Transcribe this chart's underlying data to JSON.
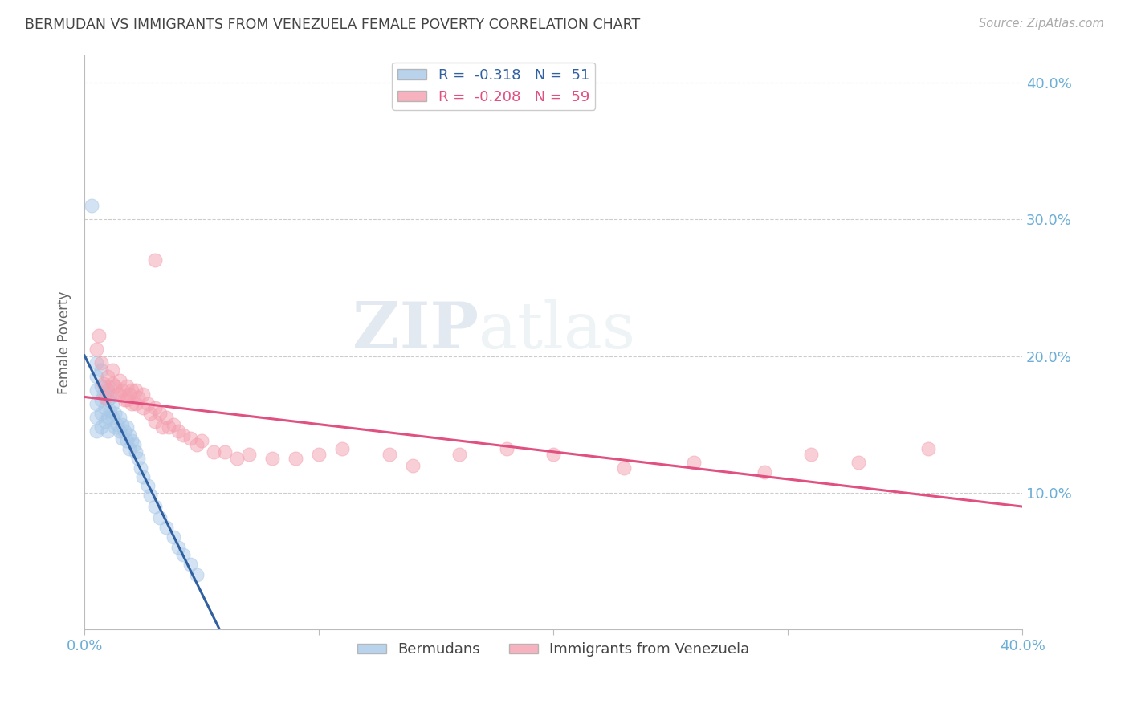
{
  "title": "BERMUDAN VS IMMIGRANTS FROM VENEZUELA FEMALE POVERTY CORRELATION CHART",
  "source": "Source: ZipAtlas.com",
  "ylabel": "Female Poverty",
  "watermark_zip": "ZIP",
  "watermark_atlas": "atlas",
  "bermuda_color": "#a8c8e8",
  "venezuela_color": "#f4a0b0",
  "bermuda_line_color": "#3060a0",
  "venezuela_line_color": "#e05080",
  "background_color": "#ffffff",
  "grid_color": "#cccccc",
  "axis_label_color": "#6baed6",
  "title_color": "#444444",
  "xlim": [
    0.0,
    0.4
  ],
  "ylim": [
    0.0,
    0.42
  ],
  "bermuda_x": [
    0.005,
    0.005,
    0.005,
    0.005,
    0.005,
    0.005,
    0.007,
    0.007,
    0.007,
    0.007,
    0.007,
    0.008,
    0.009,
    0.009,
    0.01,
    0.01,
    0.01,
    0.01,
    0.011,
    0.011,
    0.012,
    0.012,
    0.013,
    0.013,
    0.014,
    0.015,
    0.015,
    0.016,
    0.016,
    0.017,
    0.018,
    0.018,
    0.019,
    0.019,
    0.02,
    0.021,
    0.022,
    0.023,
    0.024,
    0.025,
    0.027,
    0.028,
    0.03,
    0.032,
    0.035,
    0.038,
    0.04,
    0.042,
    0.045,
    0.048,
    0.003
  ],
  "bermuda_y": [
    0.195,
    0.185,
    0.175,
    0.165,
    0.155,
    0.145,
    0.19,
    0.178,
    0.168,
    0.158,
    0.148,
    0.172,
    0.162,
    0.152,
    0.178,
    0.168,
    0.155,
    0.145,
    0.17,
    0.16,
    0.165,
    0.155,
    0.158,
    0.148,
    0.15,
    0.155,
    0.145,
    0.15,
    0.14,
    0.145,
    0.148,
    0.138,
    0.142,
    0.132,
    0.138,
    0.135,
    0.13,
    0.125,
    0.118,
    0.112,
    0.105,
    0.098,
    0.09,
    0.082,
    0.075,
    0.068,
    0.06,
    0.055,
    0.048,
    0.04,
    0.31
  ],
  "venezuela_x": [
    0.005,
    0.006,
    0.007,
    0.008,
    0.009,
    0.01,
    0.01,
    0.012,
    0.012,
    0.013,
    0.014,
    0.015,
    0.015,
    0.016,
    0.017,
    0.018,
    0.018,
    0.019,
    0.02,
    0.02,
    0.022,
    0.022,
    0.023,
    0.025,
    0.025,
    0.027,
    0.028,
    0.03,
    0.03,
    0.032,
    0.033,
    0.035,
    0.036,
    0.038,
    0.04,
    0.042,
    0.045,
    0.048,
    0.05,
    0.055,
    0.06,
    0.065,
    0.07,
    0.08,
    0.09,
    0.1,
    0.11,
    0.13,
    0.14,
    0.16,
    0.18,
    0.2,
    0.23,
    0.26,
    0.29,
    0.31,
    0.33,
    0.36,
    0.03
  ],
  "venezuela_y": [
    0.205,
    0.215,
    0.195,
    0.18,
    0.17,
    0.185,
    0.175,
    0.19,
    0.18,
    0.178,
    0.172,
    0.182,
    0.172,
    0.175,
    0.168,
    0.178,
    0.168,
    0.172,
    0.175,
    0.165,
    0.175,
    0.165,
    0.17,
    0.172,
    0.162,
    0.165,
    0.158,
    0.162,
    0.152,
    0.158,
    0.148,
    0.155,
    0.148,
    0.15,
    0.145,
    0.142,
    0.14,
    0.135,
    0.138,
    0.13,
    0.13,
    0.125,
    0.128,
    0.125,
    0.125,
    0.128,
    0.132,
    0.128,
    0.12,
    0.128,
    0.132,
    0.128,
    0.118,
    0.122,
    0.115,
    0.128,
    0.122,
    0.132,
    0.27
  ]
}
